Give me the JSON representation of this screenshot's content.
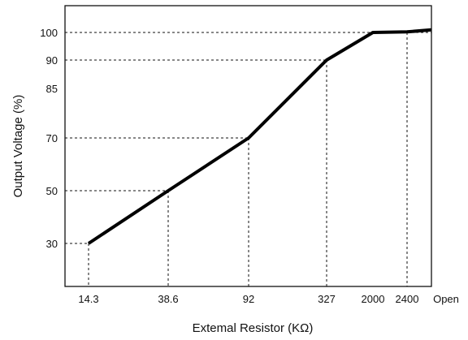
{
  "chart_data": {
    "type": "line",
    "title": "",
    "xlabel": "Extemal Resistor (KΩ)",
    "ylabel": "Output Voltage (%)",
    "x_categories": [
      "14.3",
      "38.6",
      "92",
      "327",
      "2000",
      "2400",
      "Open"
    ],
    "y_ticks": [
      "30",
      "50",
      "70",
      "85",
      "90",
      "100"
    ],
    "ylim": [
      10,
      110
    ],
    "grid": false,
    "series": [
      {
        "points": [
          {
            "x": "14.3",
            "y": 30
          },
          {
            "x": "38.6",
            "y": 50
          },
          {
            "x": "92",
            "y": 70
          },
          {
            "x": "327",
            "y": 90
          },
          {
            "x": "2000",
            "y": 100
          },
          {
            "x": "2400",
            "y": 100.2
          },
          {
            "x": "Open",
            "y": 101
          }
        ],
        "color": "#000000"
      }
    ],
    "guides": [
      {
        "x": "14.3",
        "y": 30
      },
      {
        "x": "38.6",
        "y": 50
      },
      {
        "x": "92",
        "y": 70
      },
      {
        "x": "327",
        "y": 90
      },
      {
        "x": "2400",
        "y": 100
      }
    ]
  }
}
